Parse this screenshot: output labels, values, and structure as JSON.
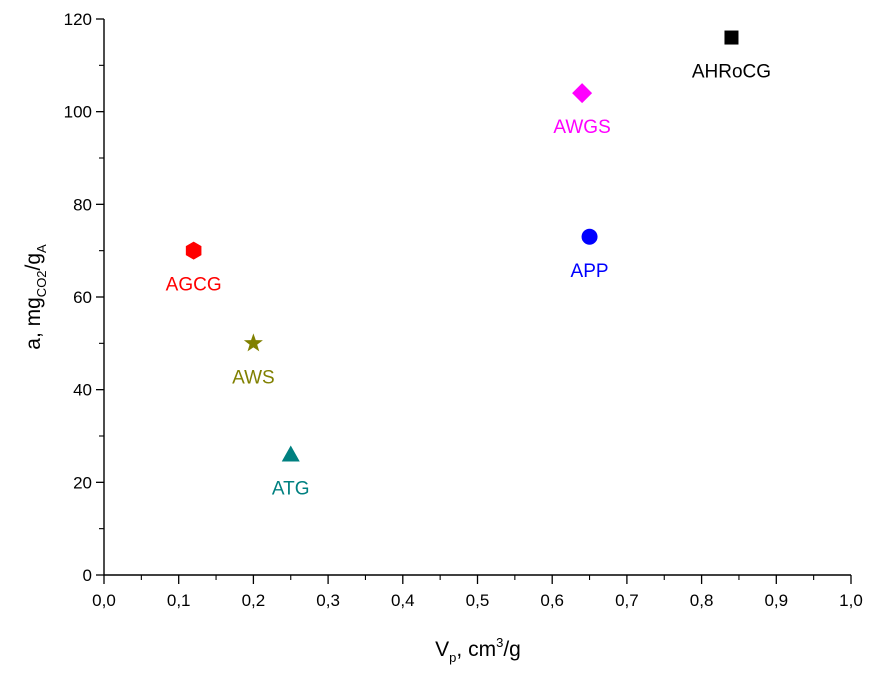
{
  "chart_data": {
    "type": "scatter",
    "xlabel": {
      "main": "V",
      "sub": "p",
      "rest": ", cm",
      "sup": "3",
      "tail": "/g"
    },
    "ylabel": {
      "main": "a, mg",
      "sub1": "CO2",
      "mid": "/g",
      "sub2": "A"
    },
    "xlim": [
      0.0,
      1.0
    ],
    "ylim": [
      0,
      120
    ],
    "xticks": [
      "0,0",
      "0,1",
      "0,2",
      "0,3",
      "0,4",
      "0,5",
      "0,6",
      "0,7",
      "0,8",
      "0,9",
      "1,0"
    ],
    "yticks": [
      "0",
      "20",
      "40",
      "60",
      "80",
      "100",
      "120"
    ],
    "grid": false,
    "points": [
      {
        "name": "AGCG",
        "x": 0.12,
        "y": 70,
        "marker": "hexagon",
        "color": "#ff0000"
      },
      {
        "name": "AWS",
        "x": 0.2,
        "y": 50,
        "marker": "star",
        "color": "#808000"
      },
      {
        "name": "ATG",
        "x": 0.25,
        "y": 26,
        "marker": "triangle",
        "color": "#008080"
      },
      {
        "name": "AWGS",
        "x": 0.64,
        "y": 104,
        "marker": "diamond",
        "color": "#ff00ff"
      },
      {
        "name": "APP",
        "x": 0.65,
        "y": 73,
        "marker": "circle",
        "color": "#0000ff"
      },
      {
        "name": "AHRoCG",
        "x": 0.84,
        "y": 116,
        "marker": "square",
        "color": "#000000"
      }
    ]
  }
}
